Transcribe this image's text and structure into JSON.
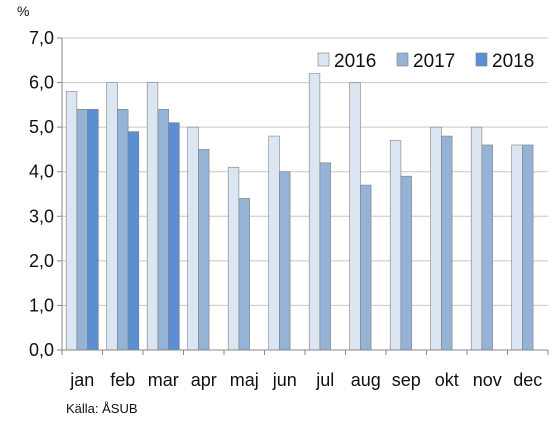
{
  "chart_data": {
    "type": "bar",
    "unit_label": "%",
    "source": "Källa: ÅSUB",
    "categories": [
      "jan",
      "feb",
      "mar",
      "apr",
      "maj",
      "jun",
      "jul",
      "aug",
      "sep",
      "okt",
      "nov",
      "dec"
    ],
    "series": [
      {
        "name": "2016",
        "color": "#dce6f2",
        "values": [
          5.8,
          6.0,
          6.0,
          5.0,
          4.1,
          4.8,
          6.2,
          6.0,
          4.7,
          5.0,
          5.0,
          4.6
        ]
      },
      {
        "name": "2017",
        "color": "#95b3d7",
        "values": [
          5.4,
          5.4,
          5.4,
          4.5,
          3.4,
          4.0,
          4.2,
          3.7,
          3.9,
          4.8,
          4.6,
          4.6
        ]
      },
      {
        "name": "2018",
        "color": "#5b8fd4",
        "values": [
          5.4,
          4.9,
          5.1,
          null,
          null,
          null,
          null,
          null,
          null,
          null,
          null,
          null
        ]
      }
    ],
    "y_ticks": [
      "0,0",
      "1,0",
      "2,0",
      "3,0",
      "4,0",
      "5,0",
      "6,0",
      "7,0"
    ],
    "ylim": [
      0,
      7
    ],
    "grid": true,
    "legend_position": "top-right"
  }
}
